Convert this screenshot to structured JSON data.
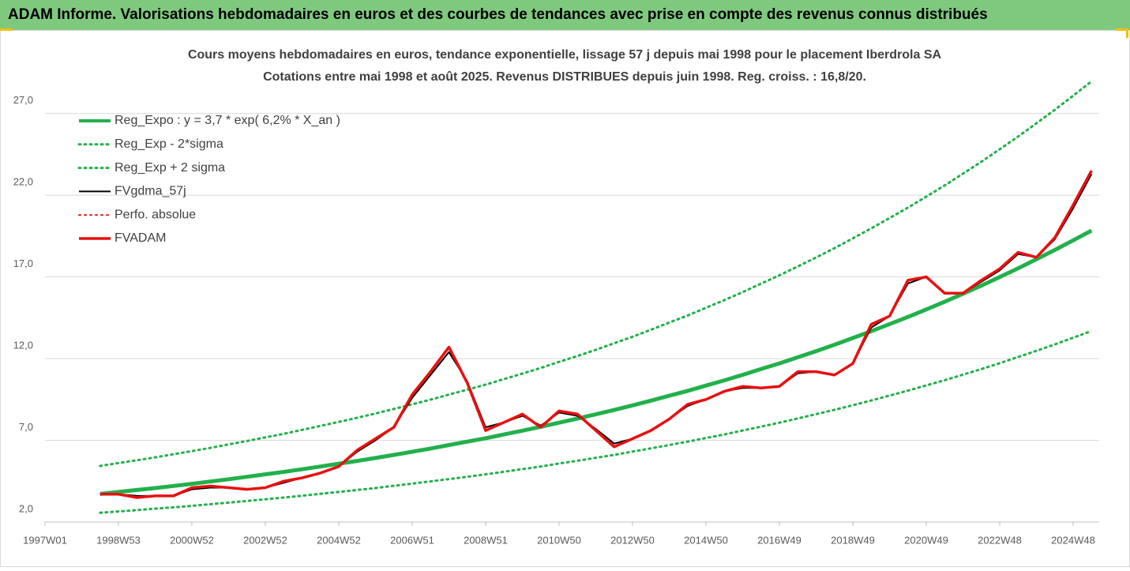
{
  "chart_data": {
    "type": "line",
    "header": "ADAM Informe. Valorisations hebdomadaires en euros et des courbes de tendances avec prise en compte des revenus connus distribués",
    "title": "Cours moyens hebdomadaires en euros, tendance exponentielle, lissage 57 j depuis mai 1998 pour le placement Iberdrola SA",
    "subtitle": "Cotations entre mai 1998 et août 2025. Revenus DISTRIBUES depuis juin 1998. Reg. croiss. : 16,8/20.",
    "categories": [
      "1997W01",
      null,
      null,
      null,
      "1998W53",
      null,
      null,
      null,
      "2000W52",
      null,
      null,
      null,
      "2002W52",
      null,
      null,
      null,
      "2004W52",
      null,
      null,
      null,
      "2006W51",
      null,
      null,
      null,
      "2008W51",
      null,
      null,
      null,
      "2010W50",
      null,
      null,
      null,
      "2012W50",
      null,
      null,
      null,
      "2014W50",
      null,
      null,
      null,
      "2016W49",
      null,
      null,
      null,
      "2018W49",
      null,
      null,
      null,
      "2020W49",
      null,
      null,
      null,
      "2022W48",
      null,
      null,
      null,
      "2024W48",
      null
    ],
    "ylim": [
      2,
      29.5
    ],
    "yticks": [
      {
        "value": 2,
        "label": "2,0"
      },
      {
        "value": 7,
        "label": "7,0"
      },
      {
        "value": 12,
        "label": "12,0"
      },
      {
        "value": 17,
        "label": "17,0"
      },
      {
        "value": 22,
        "label": "22,0"
      },
      {
        "value": 27,
        "label": "27,0"
      }
    ],
    "grid": true,
    "legend": "top-left",
    "series": [
      {
        "name": "Reg_Expo : y = 3,7 * exp( 6,2% *  X_an )",
        "color": "#22b04b",
        "dash": "solid",
        "width": 5,
        "values": [
          null,
          null,
          null,
          3.72,
          3.84,
          3.96,
          4.08,
          4.21,
          4.34,
          4.48,
          4.62,
          4.77,
          4.92,
          5.07,
          5.23,
          5.4,
          5.57,
          5.74,
          5.92,
          6.11,
          6.3,
          6.5,
          6.71,
          6.92,
          7.13,
          7.36,
          7.59,
          7.83,
          8.08,
          8.33,
          8.59,
          8.86,
          9.14,
          9.43,
          9.73,
          10.03,
          10.35,
          10.67,
          11.01,
          11.36,
          11.71,
          12.08,
          12.46,
          12.85,
          13.26,
          13.68,
          14.11,
          14.55,
          15.01,
          15.48,
          15.97,
          16.47,
          16.99,
          17.53,
          18.08,
          18.65,
          19.24,
          19.84
        ]
      },
      {
        "name": "Reg_Exp - 2*sigma",
        "color": "#22b04b",
        "dash": "dotted",
        "width": 3,
        "values": [
          null,
          null,
          null,
          2.57,
          2.65,
          2.73,
          2.82,
          2.9,
          2.99,
          3.09,
          3.19,
          3.29,
          3.39,
          3.5,
          3.61,
          3.73,
          3.84,
          3.96,
          4.08,
          4.22,
          4.35,
          4.49,
          4.63,
          4.77,
          4.92,
          5.08,
          5.24,
          5.4,
          5.58,
          5.75,
          5.93,
          6.11,
          6.31,
          6.51,
          6.71,
          6.92,
          7.14,
          7.36,
          7.6,
          7.84,
          8.08,
          8.34,
          8.6,
          8.87,
          9.15,
          9.44,
          9.74,
          10.04,
          10.36,
          10.68,
          11.02,
          11.36,
          11.72,
          12.1,
          12.48,
          12.87,
          13.28,
          13.69
        ]
      },
      {
        "name": "Reg_Exp + 2 sigma",
        "color": "#22b04b",
        "dash": "dotted",
        "width": 3,
        "values": [
          null,
          null,
          null,
          5.43,
          5.61,
          5.78,
          5.96,
          6.15,
          6.34,
          6.54,
          6.75,
          6.96,
          7.18,
          7.4,
          7.64,
          7.88,
          8.13,
          8.38,
          8.64,
          8.92,
          9.2,
          9.49,
          9.8,
          10.1,
          10.41,
          10.75,
          11.08,
          11.43,
          11.8,
          12.16,
          12.54,
          12.94,
          13.34,
          13.77,
          14.21,
          14.64,
          15.11,
          15.58,
          16.07,
          16.59,
          17.1,
          17.64,
          18.19,
          18.76,
          19.36,
          19.97,
          20.6,
          21.24,
          21.91,
          22.6,
          23.32,
          24.05,
          24.81,
          25.59,
          26.4,
          27.23,
          28.09,
          28.97
        ]
      },
      {
        "name": "FVgdma_57j",
        "color": "#000000",
        "dash": "solid",
        "width": 2,
        "values": [
          null,
          null,
          null,
          3.7,
          3.7,
          3.6,
          3.6,
          3.6,
          4.0,
          4.1,
          4.1,
          4.0,
          4.1,
          4.4,
          4.7,
          5.0,
          5.4,
          6.3,
          7.0,
          7.8,
          9.6,
          11.0,
          12.4,
          10.6,
          7.8,
          8.1,
          8.5,
          7.9,
          8.7,
          8.5,
          7.7,
          6.8,
          7.1,
          7.6,
          8.3,
          9.1,
          9.5,
          10.0,
          10.2,
          10.2,
          10.3,
          11.1,
          11.2,
          11.0,
          11.7,
          13.9,
          14.6,
          16.6,
          17.0,
          16.0,
          16.0,
          16.7,
          17.4,
          18.4,
          18.2,
          19.3,
          21.2,
          23.3
        ]
      },
      {
        "name": "Perfo. absolue",
        "color": "#e81010",
        "dash": "dotted",
        "width": 2,
        "values": [
          null,
          null,
          null,
          null,
          null,
          null,
          null,
          null,
          null,
          null,
          null,
          null,
          null,
          null,
          null,
          null,
          null,
          null,
          null,
          null,
          null,
          null,
          null,
          null,
          null,
          null,
          null,
          null,
          null,
          null,
          null,
          null,
          null,
          null,
          null,
          null,
          null,
          null,
          null,
          null,
          null,
          null,
          null,
          null,
          null,
          null,
          null,
          null,
          null,
          null,
          null,
          null,
          null,
          null,
          null,
          null,
          null,
          null
        ]
      },
      {
        "name": "FVADAM",
        "color": "#e81010",
        "dash": "solid",
        "width": 3.5,
        "values": [
          null,
          null,
          null,
          3.7,
          3.7,
          3.5,
          3.6,
          3.6,
          4.1,
          4.2,
          4.1,
          4.0,
          4.1,
          4.5,
          4.7,
          5.0,
          5.4,
          6.4,
          7.1,
          7.8,
          9.8,
          11.2,
          12.7,
          10.5,
          7.6,
          8.1,
          8.6,
          7.8,
          8.8,
          8.6,
          7.6,
          6.6,
          7.1,
          7.6,
          8.3,
          9.2,
          9.5,
          10.0,
          10.3,
          10.2,
          10.3,
          11.2,
          11.2,
          11.0,
          11.7,
          14.1,
          14.6,
          16.8,
          17.0,
          16.0,
          16.0,
          16.8,
          17.5,
          18.5,
          18.2,
          19.4,
          21.4,
          23.5
        ]
      }
    ]
  }
}
